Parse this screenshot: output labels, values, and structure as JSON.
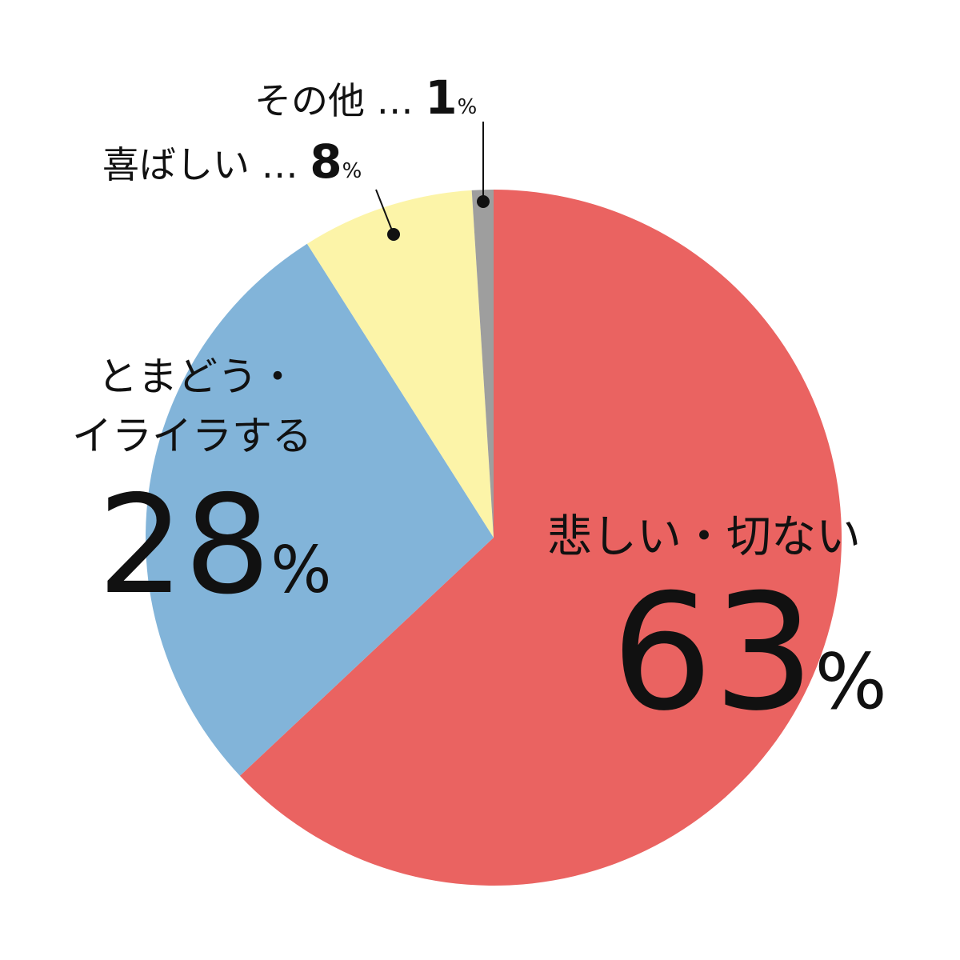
{
  "chart_data": {
    "type": "pie",
    "start": "top",
    "direction": "clockwise",
    "slices": [
      {
        "label": "悲しい・切ない",
        "value": 63,
        "color": "#EA6361"
      },
      {
        "label": "とまどう・イライラする",
        "value": 28,
        "color": "#82B4D9"
      },
      {
        "label": "喜ばしい",
        "value": 8,
        "color": "#FCF4A8"
      },
      {
        "label": "その他",
        "value": 1,
        "color": "#9E9E9E"
      }
    ],
    "labels": {
      "sad": {
        "line1": "悲しい・切ない",
        "num": "63",
        "pct": "%"
      },
      "confused": {
        "line1": "とまどう・",
        "line2": "イライラする",
        "num": "28",
        "pct": "%"
      },
      "happy": {
        "text": "喜ばしい … ",
        "num": "8",
        "pct": "%"
      },
      "other": {
        "text": "その他 … ",
        "num": "1",
        "pct": "%"
      }
    }
  }
}
